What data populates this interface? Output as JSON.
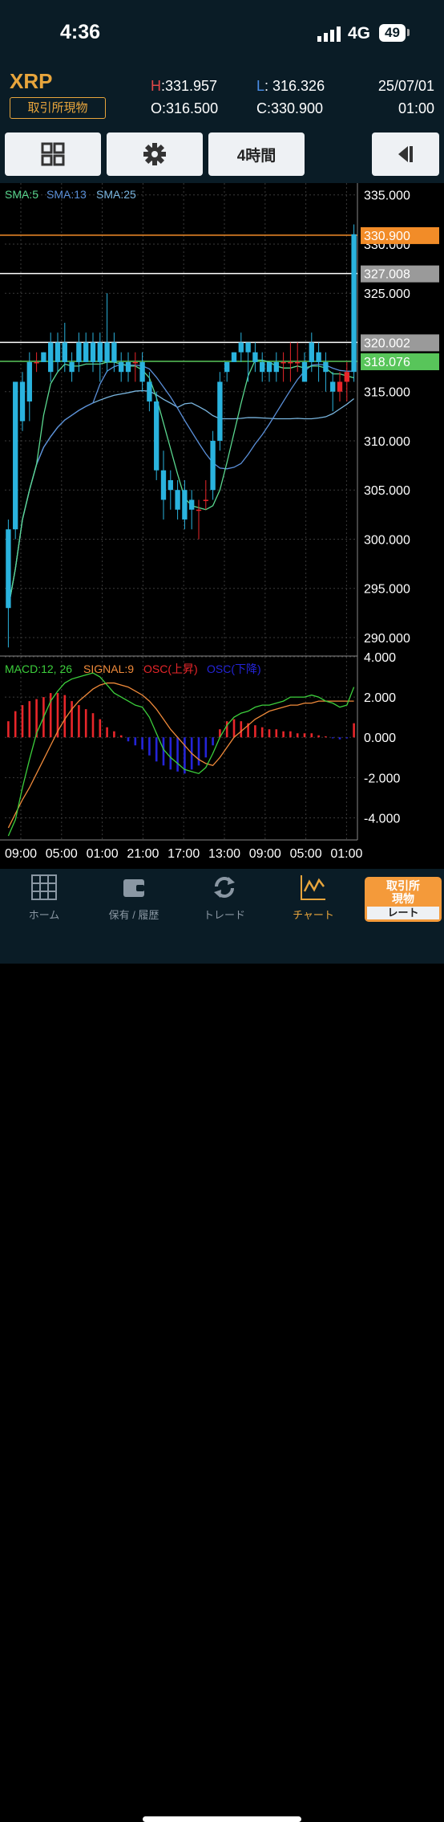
{
  "status": {
    "time": "4:36",
    "network": "4G",
    "battery": "49"
  },
  "header": {
    "symbol": "XRP",
    "market": "取引所現物",
    "high_label": "H",
    "high": ":331.957",
    "low_label": "L",
    "low": ": 316.326",
    "open_label": "O",
    "open": ":316.500",
    "close_label": "C",
    "close": ":330.900",
    "date": "25/07/01",
    "time": "01:00"
  },
  "toolbar": {
    "grid_icon": "grid-icon",
    "settings_icon": "gear-icon",
    "interval": "4時間",
    "back_icon": "collapse-left-icon"
  },
  "colors": {
    "up": "#e8262a",
    "down": "#2ab3de",
    "sma5": "#5ad88f",
    "sma13": "#5a8fd8",
    "sma25": "#7ab6e0",
    "macd": "#3ccf3c",
    "signal": "#f08a3a",
    "osc_up": "#e8262a",
    "osc_down": "#2424d8",
    "accent": "#e8a53c",
    "current_price_line": "#f28c28",
    "level_line_2": "#58c55a"
  },
  "chart_data": {
    "type": "candlestick",
    "price_axis": {
      "ticks": [
        "335.000",
        "330.000",
        "325.000",
        "320.000",
        "315.000",
        "310.000",
        "305.000",
        "300.000",
        "295.000",
        "290.000"
      ],
      "ylim": [
        288.2,
        336.2
      ]
    },
    "price_lines": [
      {
        "value": 330.9,
        "label": "330.900",
        "color": "#f28c28"
      },
      {
        "value": 327.008,
        "label": "327.008",
        "color": "#ffffff"
      },
      {
        "value": 320.002,
        "label": "320.002",
        "color": "#ffffff"
      },
      {
        "value": 318.076,
        "label": "318.076",
        "color": "#58c55a"
      }
    ],
    "legend": [
      "SMA:5",
      "SMA:13",
      "SMA:25"
    ],
    "candles": [
      [
        301,
        293,
        302,
        289
      ],
      [
        316,
        301,
        316,
        300
      ],
      [
        316,
        312,
        317,
        311
      ],
      [
        318,
        314,
        319,
        312
      ],
      [
        318,
        318,
        319,
        317
      ],
      [
        319,
        318,
        319,
        318
      ],
      [
        320,
        317,
        321,
        316
      ],
      [
        320,
        318,
        321,
        317
      ],
      [
        320,
        318,
        322,
        317
      ],
      [
        318,
        317,
        319,
        316
      ],
      [
        320,
        318,
        321,
        317
      ],
      [
        320,
        318,
        321,
        318
      ],
      [
        320,
        318,
        321,
        317
      ],
      [
        320,
        318,
        321,
        316
      ],
      [
        320,
        318,
        325,
        317
      ],
      [
        320,
        318,
        321,
        317
      ],
      [
        318,
        317,
        319,
        316
      ],
      [
        318,
        317,
        319,
        316
      ],
      [
        318,
        318,
        319,
        316
      ],
      [
        318,
        316,
        319,
        315
      ],
      [
        316,
        314,
        317,
        313
      ],
      [
        314,
        307,
        315,
        306
      ],
      [
        307,
        304,
        309,
        302
      ],
      [
        306,
        305,
        307,
        303
      ],
      [
        305,
        303,
        306,
        302
      ],
      [
        305,
        302,
        306,
        301
      ],
      [
        304,
        303,
        305,
        301
      ],
      [
        303,
        303,
        304,
        300
      ],
      [
        304,
        304,
        306,
        303
      ],
      [
        310,
        305,
        311,
        304
      ],
      [
        316,
        310,
        317,
        309
      ],
      [
        318,
        317,
        318,
        316
      ],
      [
        319,
        318,
        319,
        318
      ],
      [
        320,
        319,
        321,
        318
      ],
      [
        320,
        319,
        320,
        316
      ],
      [
        319,
        318,
        320,
        317
      ],
      [
        318,
        317,
        319,
        316
      ],
      [
        318,
        317,
        318,
        316
      ],
      [
        318,
        317,
        319,
        316
      ],
      [
        318,
        318,
        319,
        316
      ],
      [
        318,
        318,
        320,
        316
      ],
      [
        318,
        318,
        320,
        317
      ],
      [
        318,
        316,
        319,
        316
      ],
      [
        320,
        318,
        321,
        317
      ],
      [
        319,
        318,
        320,
        316
      ],
      [
        318,
        317,
        319,
        315
      ],
      [
        316,
        315,
        317,
        313
      ],
      [
        315,
        316,
        317,
        314
      ],
      [
        316,
        317,
        318,
        314
      ],
      [
        331,
        317,
        332,
        316
      ]
    ],
    "macd_axis": {
      "ticks": [
        "4.000",
        "2.000",
        "0.000",
        "-2.000",
        "-4.000"
      ],
      "ylim": [
        -5.1,
        4.0
      ]
    },
    "macd_legend": [
      "MACD:12, 26",
      "SIGNAL:9",
      "OSC(上昇)",
      "OSC(下降)"
    ],
    "macd": [
      -4.9,
      -4.1,
      -2.5,
      -1.1,
      0.2,
      1.0,
      1.8,
      2.3,
      2.7,
      2.9,
      3.0,
      3.1,
      3.2,
      3.0,
      2.6,
      2.2,
      2.0,
      1.8,
      1.6,
      1.5,
      1.0,
      0.2,
      -0.6,
      -1.0,
      -1.3,
      -1.6,
      -1.7,
      -1.8,
      -1.5,
      -0.8,
      0.0,
      0.6,
      1.0,
      1.2,
      1.3,
      1.5,
      1.6,
      1.6,
      1.7,
      1.8,
      2.0,
      2.0,
      2.0,
      2.1,
      2.0,
      1.8,
      1.7,
      1.5,
      1.6,
      2.5
    ],
    "signal": [
      -4.5,
      -3.8,
      -3.1,
      -2.5,
      -1.8,
      -1.1,
      -0.4,
      0.3,
      0.9,
      1.4,
      1.8,
      2.1,
      2.4,
      2.6,
      2.7,
      2.7,
      2.6,
      2.5,
      2.3,
      2.1,
      1.8,
      1.4,
      0.9,
      0.4,
      0.0,
      -0.4,
      -0.8,
      -1.1,
      -1.3,
      -1.4,
      -1.0,
      -0.5,
      0.0,
      0.3,
      0.6,
      0.9,
      1.1,
      1.3,
      1.4,
      1.5,
      1.6,
      1.6,
      1.7,
      1.7,
      1.8,
      1.8,
      1.8,
      1.8,
      1.8,
      1.8
    ],
    "osc": [
      0.8,
      1.3,
      1.6,
      1.8,
      1.9,
      2.0,
      2.2,
      2.2,
      2.1,
      1.8,
      1.6,
      1.4,
      1.2,
      0.9,
      0.5,
      0.3,
      0.1,
      -0.2,
      -0.4,
      -0.6,
      -0.9,
      -1.2,
      -1.4,
      -1.6,
      -1.7,
      -1.8,
      -1.6,
      -1.4,
      -1.0,
      -0.4,
      0.4,
      0.8,
      0.9,
      0.8,
      0.7,
      0.6,
      0.5,
      0.4,
      0.4,
      0.3,
      0.3,
      0.2,
      0.2,
      0.2,
      0.1,
      0.05,
      -0.05,
      -0.1,
      -0.05,
      0.7
    ],
    "x_ticks": [
      "09:00",
      "05:00",
      "01:00",
      "21:00",
      "17:00",
      "13:00",
      "09:00",
      "05:00",
      "01:00"
    ]
  },
  "tabs": [
    {
      "label": "ホーム",
      "icon": "home-grid-icon"
    },
    {
      "label": "保有 / 履歴",
      "icon": "wallet-icon"
    },
    {
      "label": "トレード",
      "icon": "refresh-arrows-icon"
    },
    {
      "label": "チャート",
      "icon": "chart-icon"
    }
  ],
  "rate_button": {
    "top": "取引所\n現物",
    "bottom": "レート"
  }
}
